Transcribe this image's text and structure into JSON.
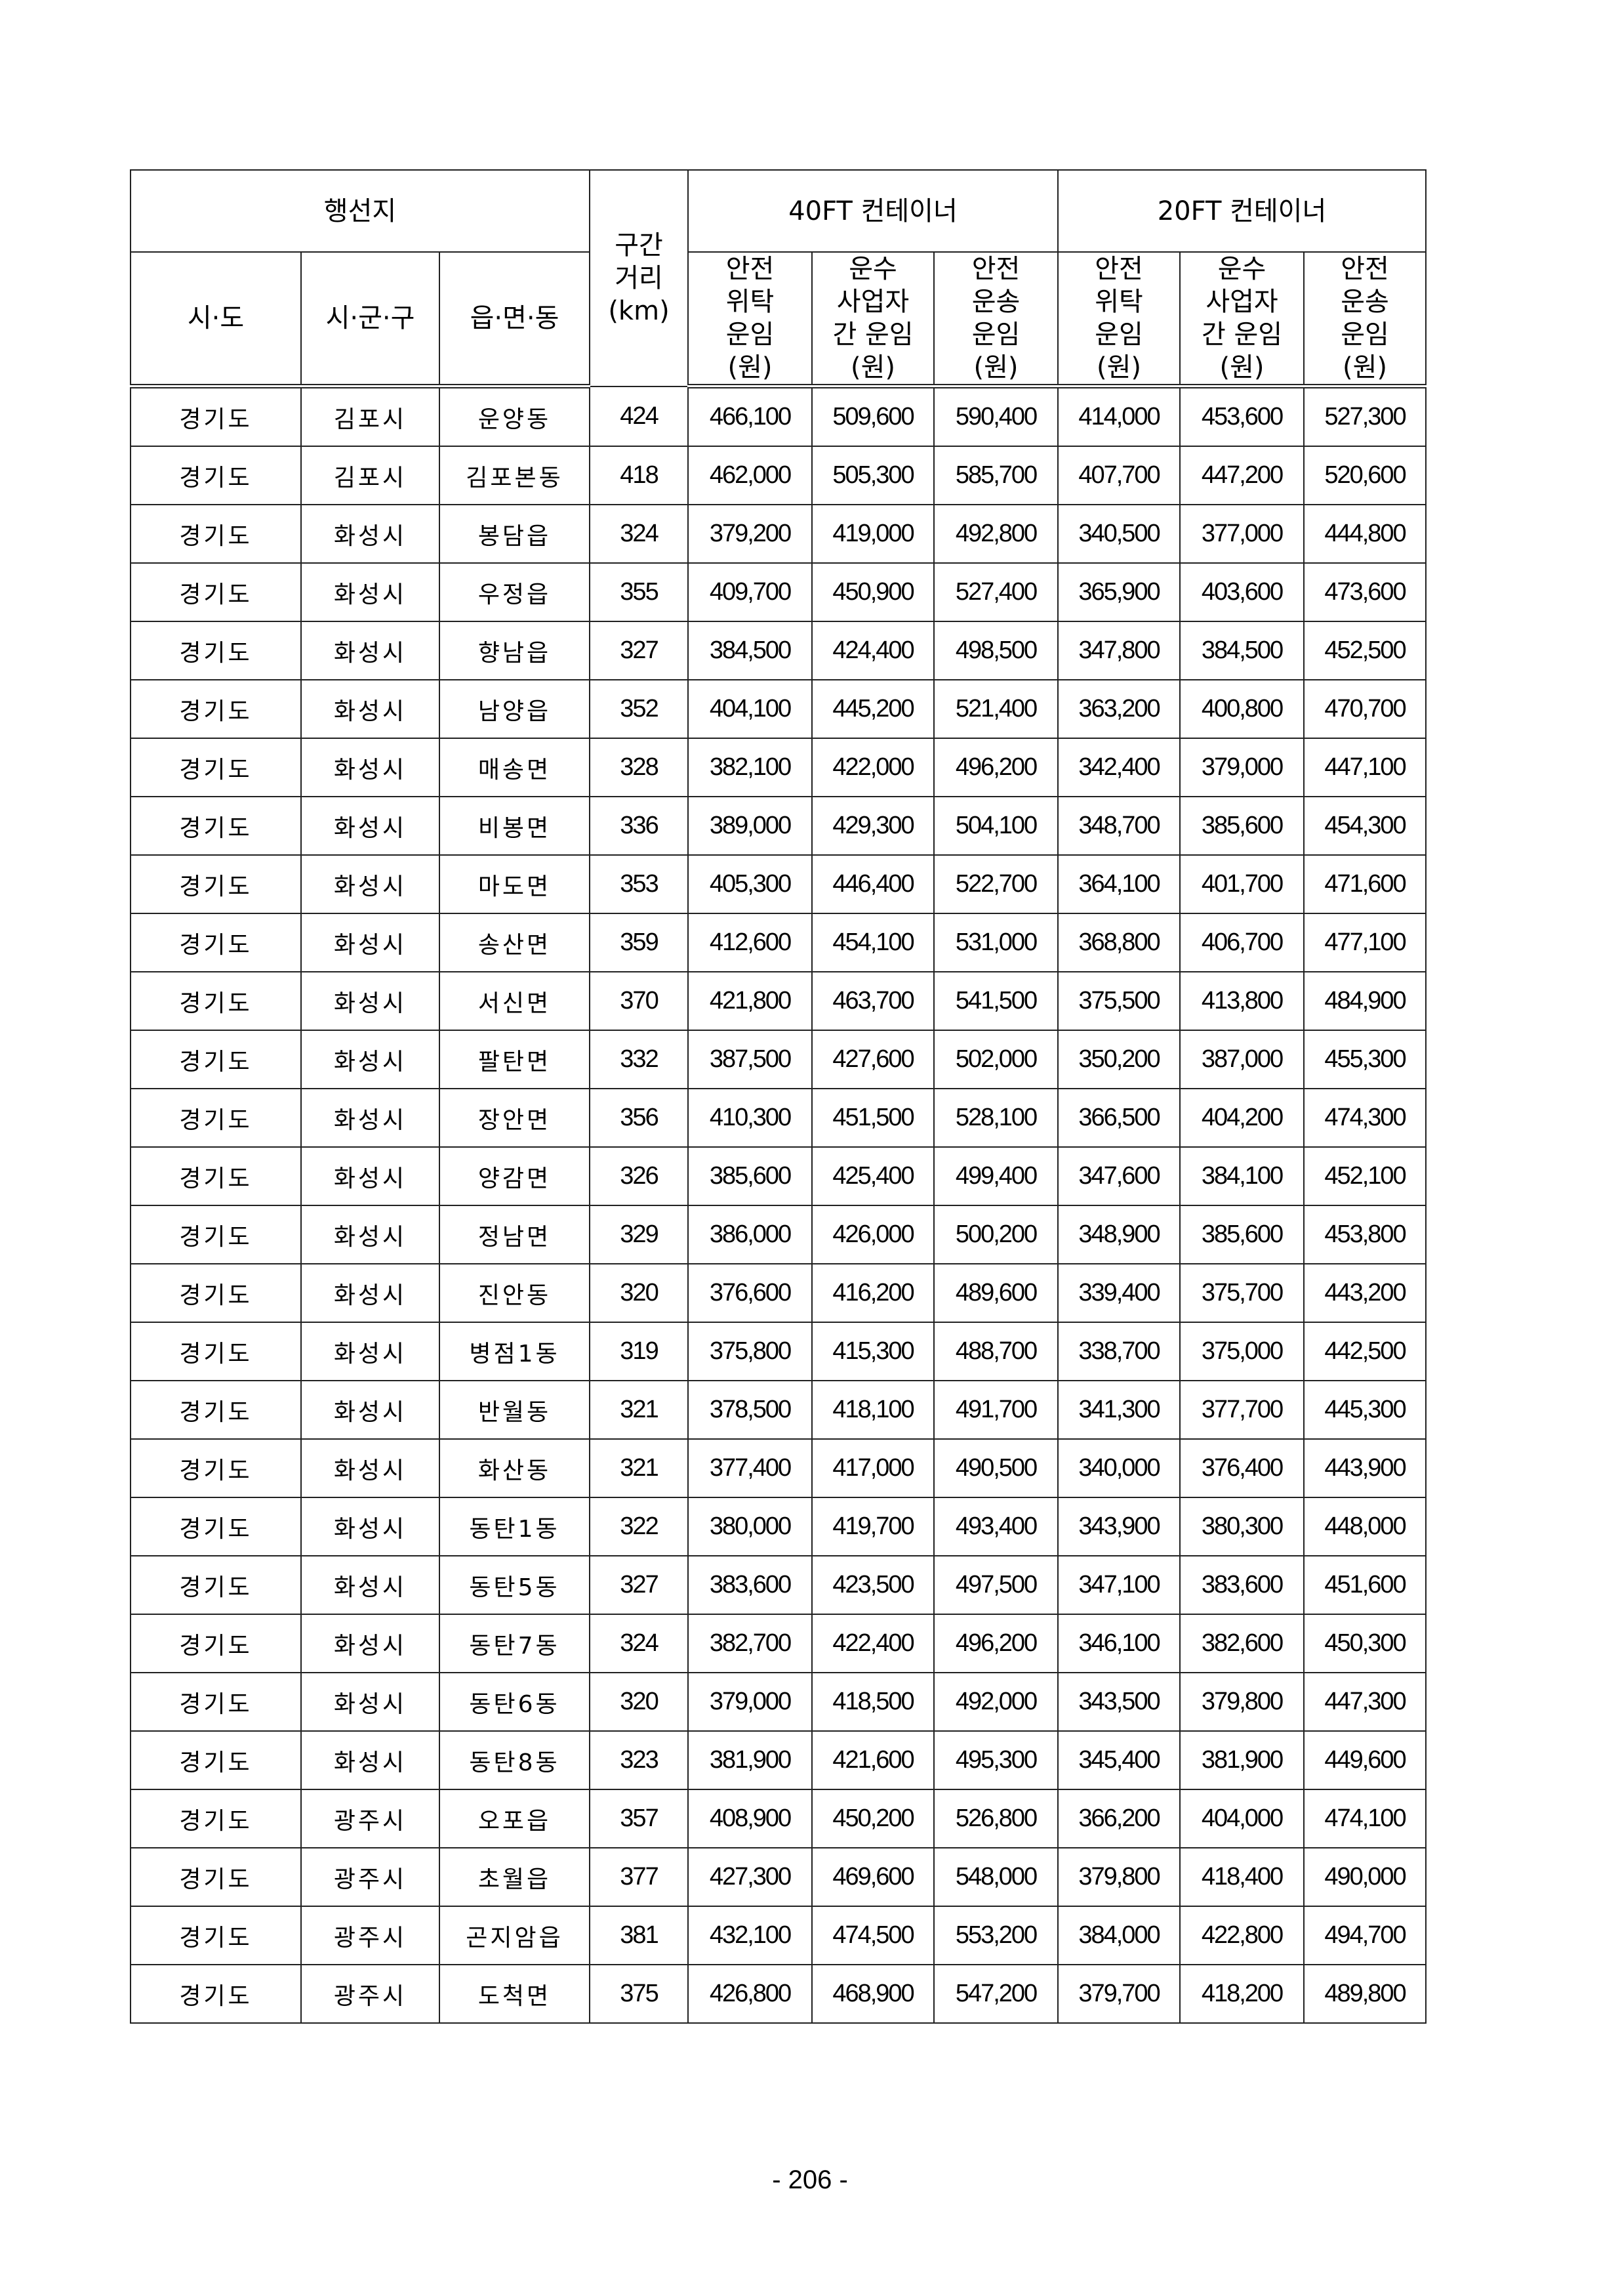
{
  "header": {
    "destination": "행선지",
    "distance": "구간\n거리\n(km)",
    "group40": "40FT 컨테이너",
    "group20": "20FT 컨테이너",
    "province": "시·도",
    "city": "시·군·구",
    "town": "읍·면·동",
    "sub": [
      "안전\n위탁\n운임\n(원)",
      "운수\n사업자\n간 운임\n(원)",
      "안전\n운송\n운임\n(원)",
      "안전\n위탁\n운임\n(원)",
      "운수\n사업자\n간 운임\n(원)",
      "안전\n운송\n운임\n(원)"
    ]
  },
  "rows": [
    [
      "경기도",
      "김포시",
      "운양동",
      "424",
      "466,100",
      "509,600",
      "590,400",
      "414,000",
      "453,600",
      "527,300"
    ],
    [
      "경기도",
      "김포시",
      "김포본동",
      "418",
      "462,000",
      "505,300",
      "585,700",
      "407,700",
      "447,200",
      "520,600"
    ],
    [
      "경기도",
      "화성시",
      "봉담읍",
      "324",
      "379,200",
      "419,000",
      "492,800",
      "340,500",
      "377,000",
      "444,800"
    ],
    [
      "경기도",
      "화성시",
      "우정읍",
      "355",
      "409,700",
      "450,900",
      "527,400",
      "365,900",
      "403,600",
      "473,600"
    ],
    [
      "경기도",
      "화성시",
      "향남읍",
      "327",
      "384,500",
      "424,400",
      "498,500",
      "347,800",
      "384,500",
      "452,500"
    ],
    [
      "경기도",
      "화성시",
      "남양읍",
      "352",
      "404,100",
      "445,200",
      "521,400",
      "363,200",
      "400,800",
      "470,700"
    ],
    [
      "경기도",
      "화성시",
      "매송면",
      "328",
      "382,100",
      "422,000",
      "496,200",
      "342,400",
      "379,000",
      "447,100"
    ],
    [
      "경기도",
      "화성시",
      "비봉면",
      "336",
      "389,000",
      "429,300",
      "504,100",
      "348,700",
      "385,600",
      "454,300"
    ],
    [
      "경기도",
      "화성시",
      "마도면",
      "353",
      "405,300",
      "446,400",
      "522,700",
      "364,100",
      "401,700",
      "471,600"
    ],
    [
      "경기도",
      "화성시",
      "송산면",
      "359",
      "412,600",
      "454,100",
      "531,000",
      "368,800",
      "406,700",
      "477,100"
    ],
    [
      "경기도",
      "화성시",
      "서신면",
      "370",
      "421,800",
      "463,700",
      "541,500",
      "375,500",
      "413,800",
      "484,900"
    ],
    [
      "경기도",
      "화성시",
      "팔탄면",
      "332",
      "387,500",
      "427,600",
      "502,000",
      "350,200",
      "387,000",
      "455,300"
    ],
    [
      "경기도",
      "화성시",
      "장안면",
      "356",
      "410,300",
      "451,500",
      "528,100",
      "366,500",
      "404,200",
      "474,300"
    ],
    [
      "경기도",
      "화성시",
      "양감면",
      "326",
      "385,600",
      "425,400",
      "499,400",
      "347,600",
      "384,100",
      "452,100"
    ],
    [
      "경기도",
      "화성시",
      "정남면",
      "329",
      "386,000",
      "426,000",
      "500,200",
      "348,900",
      "385,600",
      "453,800"
    ],
    [
      "경기도",
      "화성시",
      "진안동",
      "320",
      "376,600",
      "416,200",
      "489,600",
      "339,400",
      "375,700",
      "443,200"
    ],
    [
      "경기도",
      "화성시",
      "병점1동",
      "319",
      "375,800",
      "415,300",
      "488,700",
      "338,700",
      "375,000",
      "442,500"
    ],
    [
      "경기도",
      "화성시",
      "반월동",
      "321",
      "378,500",
      "418,100",
      "491,700",
      "341,300",
      "377,700",
      "445,300"
    ],
    [
      "경기도",
      "화성시",
      "화산동",
      "321",
      "377,400",
      "417,000",
      "490,500",
      "340,000",
      "376,400",
      "443,900"
    ],
    [
      "경기도",
      "화성시",
      "동탄1동",
      "322",
      "380,000",
      "419,700",
      "493,400",
      "343,900",
      "380,300",
      "448,000"
    ],
    [
      "경기도",
      "화성시",
      "동탄5동",
      "327",
      "383,600",
      "423,500",
      "497,500",
      "347,100",
      "383,600",
      "451,600"
    ],
    [
      "경기도",
      "화성시",
      "동탄7동",
      "324",
      "382,700",
      "422,400",
      "496,200",
      "346,100",
      "382,600",
      "450,300"
    ],
    [
      "경기도",
      "화성시",
      "동탄6동",
      "320",
      "379,000",
      "418,500",
      "492,000",
      "343,500",
      "379,800",
      "447,300"
    ],
    [
      "경기도",
      "화성시",
      "동탄8동",
      "323",
      "381,900",
      "421,600",
      "495,300",
      "345,400",
      "381,900",
      "449,600"
    ],
    [
      "경기도",
      "광주시",
      "오포읍",
      "357",
      "408,900",
      "450,200",
      "526,800",
      "366,200",
      "404,000",
      "474,100"
    ],
    [
      "경기도",
      "광주시",
      "초월읍",
      "377",
      "427,300",
      "469,600",
      "548,000",
      "379,800",
      "418,400",
      "490,000"
    ],
    [
      "경기도",
      "광주시",
      "곤지암읍",
      "381",
      "432,100",
      "474,500",
      "553,200",
      "384,000",
      "422,800",
      "494,700"
    ],
    [
      "경기도",
      "광주시",
      "도척면",
      "375",
      "426,800",
      "468,900",
      "547,200",
      "379,700",
      "418,200",
      "489,800"
    ]
  ],
  "page_number": "- 206 -"
}
